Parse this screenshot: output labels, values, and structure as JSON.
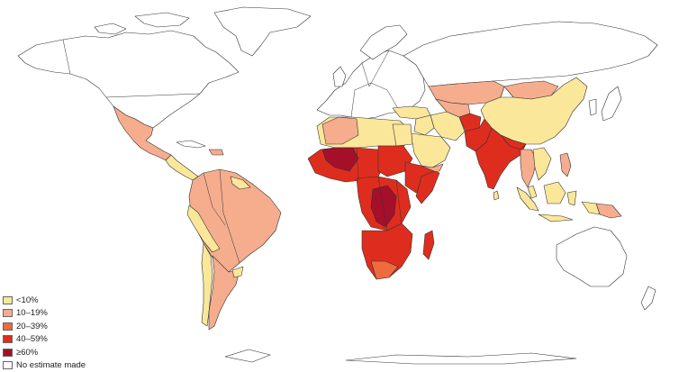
{
  "legend": {
    "items": [
      {
        "label": "<10%",
        "color": "#fbe79a"
      },
      {
        "label": "10–19%",
        "color": "#f5ad8d"
      },
      {
        "label": "20–39%",
        "color": "#ef6a3f"
      },
      {
        "label": "40–59%",
        "color": "#de2d1e"
      },
      {
        "label": "≥60%",
        "color": "#a50f2a"
      },
      {
        "label": "No estimate made",
        "color": "#ffffff"
      }
    ]
  },
  "colors": {
    "lt10": "#fbe79a",
    "r10_19": "#f5ad8d",
    "r20_39": "#ef6a3f",
    "r40_59": "#de2d1e",
    "ge60": "#a50f2a",
    "none": "#ffffff",
    "outline": "#333333"
  }
}
